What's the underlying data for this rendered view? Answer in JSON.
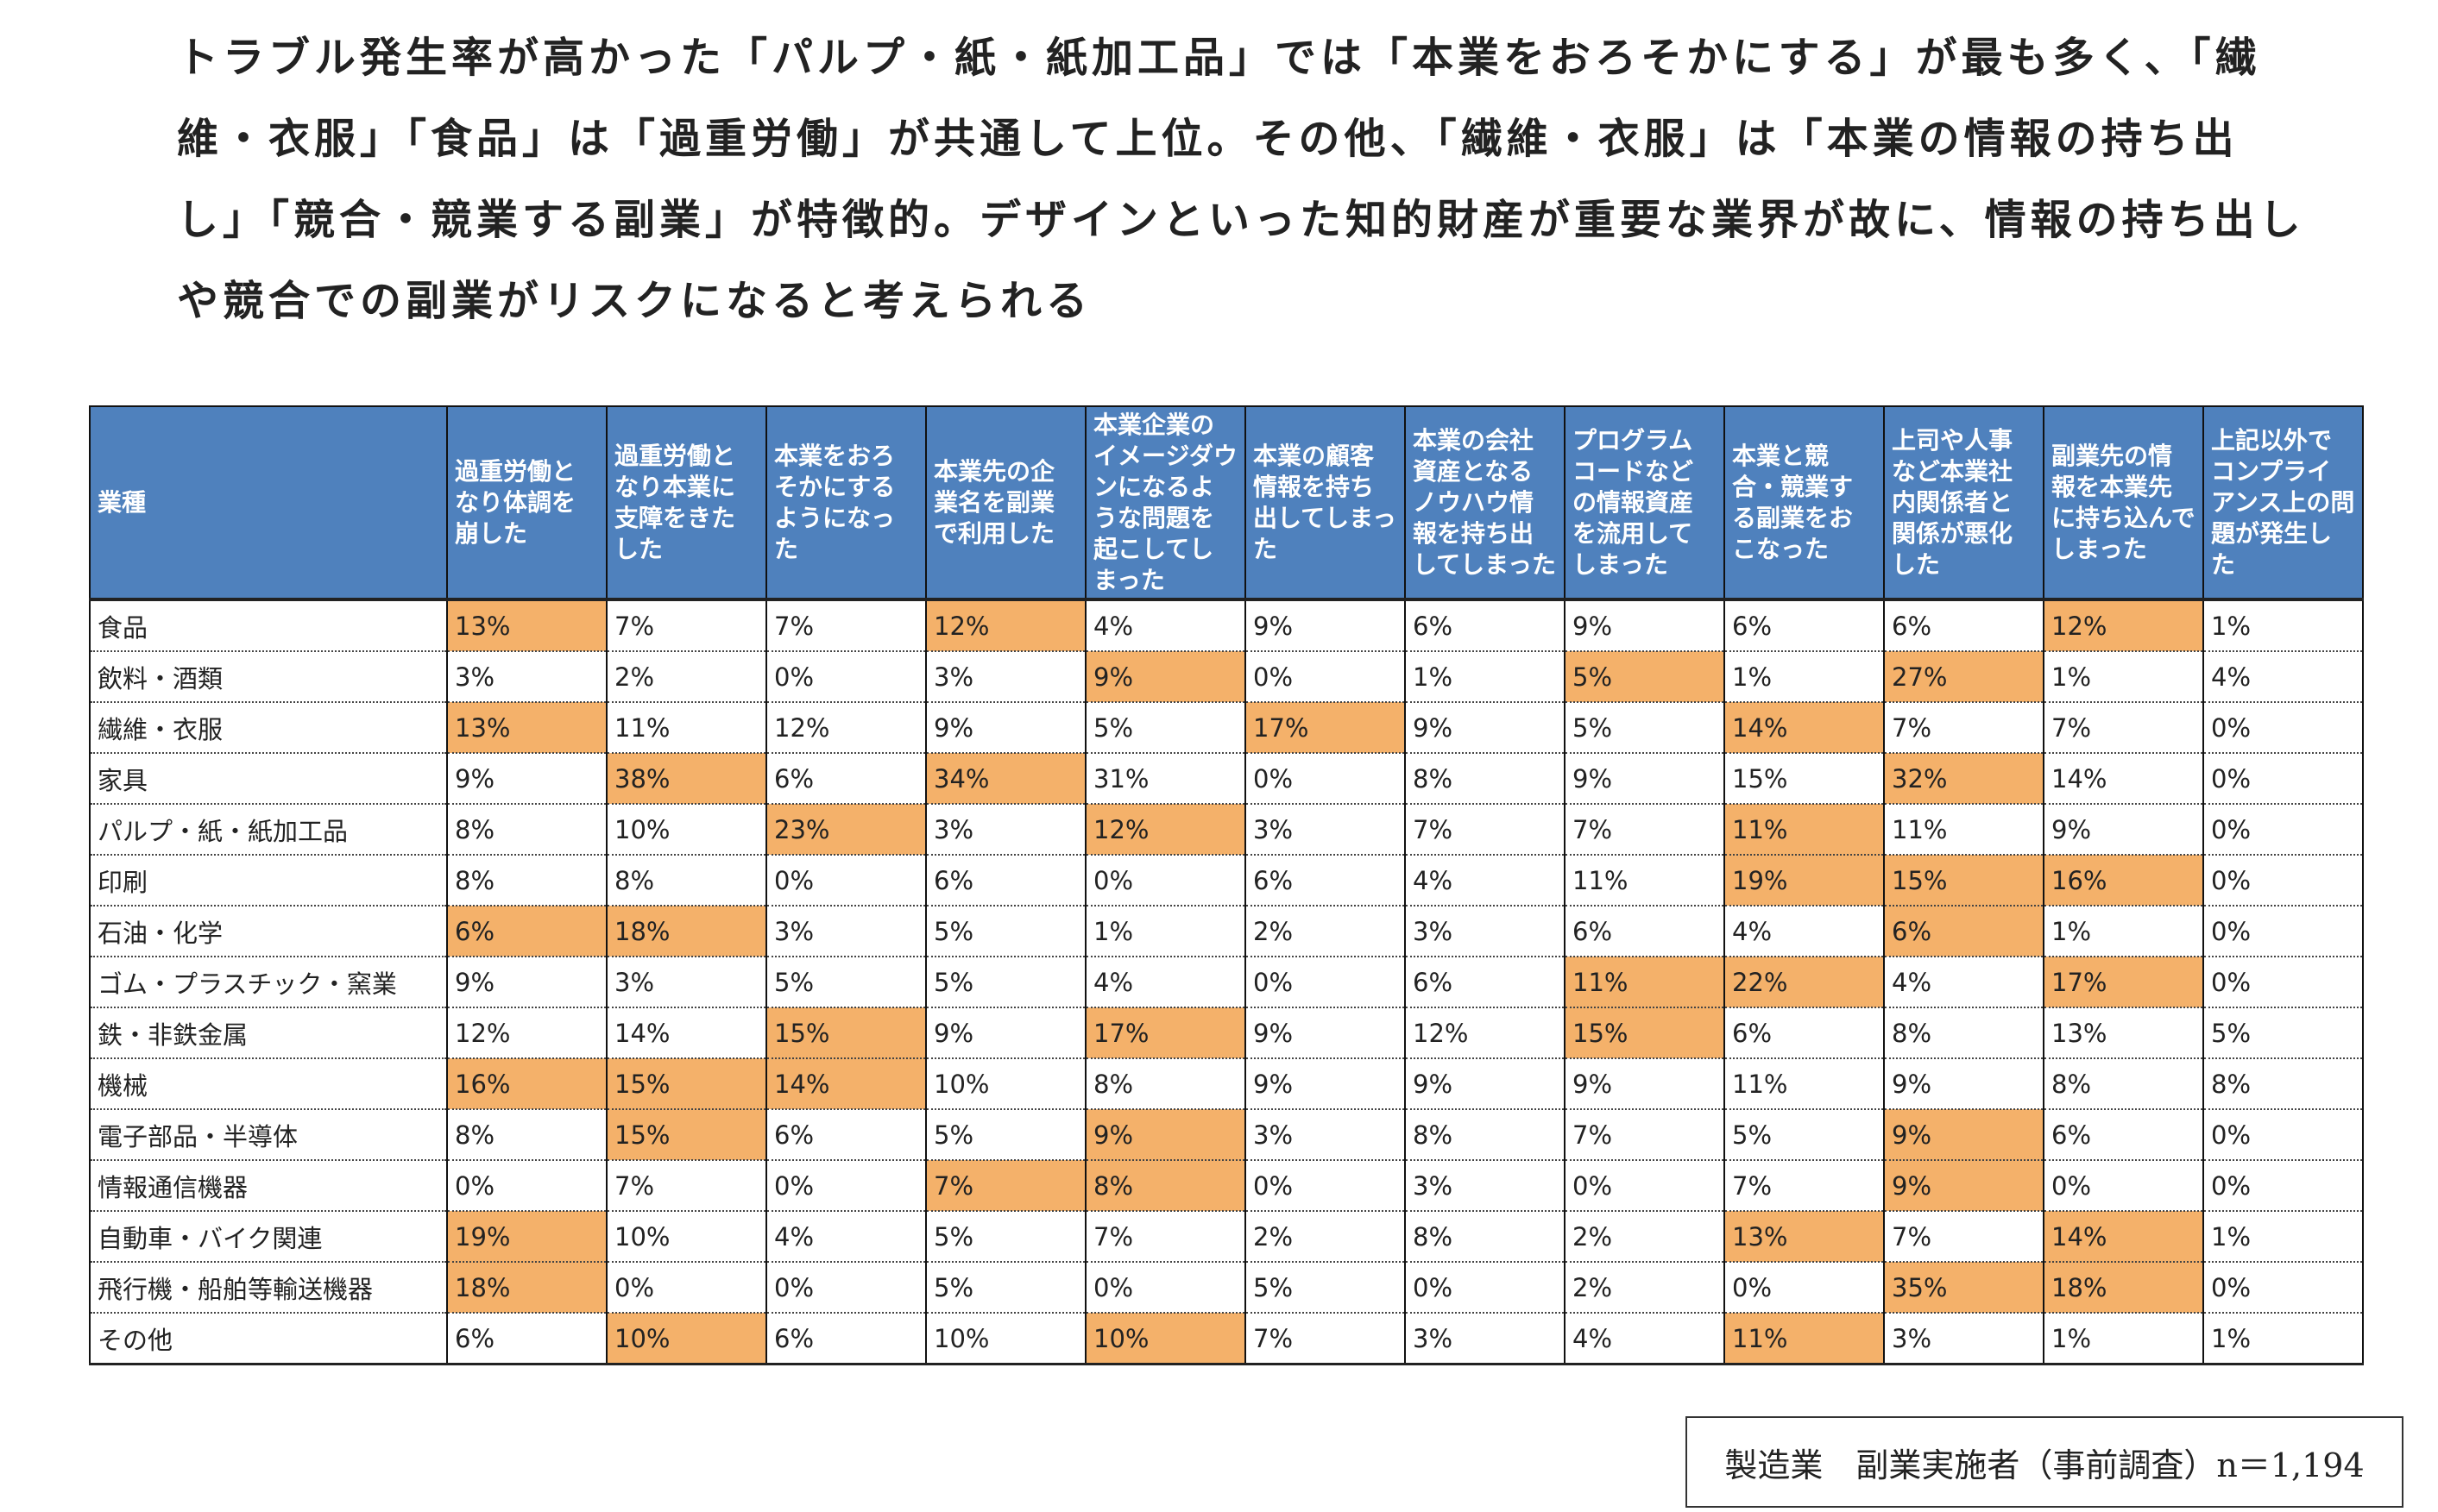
{
  "summary": {
    "lines": [
      "トラブル発生率が高かった「パルプ・紙・紙加工品」では「本業をおろそかにする」が最も多く、「繊",
      "維・衣服」「食品」は「過重労働」が共通して上位。その他、「繊維・衣服」は「本業の情報の持ち出",
      "し」「競合・競業する副業」が特徴的。デザインといった知的財産が重要な業界が故に、情報の持ち出し",
      "や競合での副業がリスクになると考えられる"
    ]
  },
  "colors": {
    "header_bg": "#4f81bd",
    "highlight": "#f4b16a"
  },
  "table": {
    "headers": [
      "業種",
      "過重労働となり体調を崩した",
      "過重労働となり本業に支障をきたした",
      "本業をおろそかにするようになった",
      "本業先の企業名を副業で利用した",
      "本業企業のイメージダウンになるような問題を起こしてしまった",
      "本業の顧客情報を持ち出してしまった",
      "本業の会社資産となるノウハウ情報を持ち出してしまった",
      "プログラムコードなどの情報資産を流用してしまった",
      "本業と競合・競業する副業をおこなった",
      "上司や人事など本業社内関係者と関係が悪化した",
      "副業先の情報を本業先に持ち込んでしまった",
      "上記以外でコンプライアンス上の問題が発生した"
    ],
    "rows": [
      {
        "industry": "食品",
        "values": [
          "13%",
          "7%",
          "7%",
          "12%",
          "4%",
          "9%",
          "6%",
          "9%",
          "6%",
          "6%",
          "12%",
          "1%"
        ],
        "highlight": [
          0,
          3,
          10
        ]
      },
      {
        "industry": "飲料・酒類",
        "values": [
          "3%",
          "2%",
          "0%",
          "3%",
          "9%",
          "0%",
          "1%",
          "5%",
          "1%",
          "27%",
          "1%",
          "4%"
        ],
        "highlight": [
          4,
          7,
          9
        ]
      },
      {
        "industry": "繊維・衣服",
        "values": [
          "13%",
          "11%",
          "12%",
          "9%",
          "5%",
          "17%",
          "9%",
          "5%",
          "14%",
          "7%",
          "7%",
          "0%"
        ],
        "highlight": [
          0,
          5,
          8
        ]
      },
      {
        "industry": "家具",
        "values": [
          "9%",
          "38%",
          "6%",
          "34%",
          "31%",
          "0%",
          "8%",
          "9%",
          "15%",
          "32%",
          "14%",
          "0%"
        ],
        "highlight": [
          1,
          3,
          9
        ]
      },
      {
        "industry": "パルプ・紙・紙加工品",
        "values": [
          "8%",
          "10%",
          "23%",
          "3%",
          "12%",
          "3%",
          "7%",
          "7%",
          "11%",
          "11%",
          "9%",
          "0%"
        ],
        "highlight": [
          2,
          4,
          8
        ]
      },
      {
        "industry": "印刷",
        "values": [
          "8%",
          "8%",
          "0%",
          "6%",
          "0%",
          "6%",
          "4%",
          "11%",
          "19%",
          "15%",
          "16%",
          "0%"
        ],
        "highlight": [
          8,
          9,
          10
        ]
      },
      {
        "industry": "石油・化学",
        "values": [
          "6%",
          "18%",
          "3%",
          "5%",
          "1%",
          "2%",
          "3%",
          "6%",
          "4%",
          "6%",
          "1%",
          "0%"
        ],
        "highlight": [
          0,
          1,
          9
        ]
      },
      {
        "industry": "ゴム・プラスチック・窯業",
        "values": [
          "9%",
          "3%",
          "5%",
          "5%",
          "4%",
          "0%",
          "6%",
          "11%",
          "22%",
          "4%",
          "17%",
          "0%"
        ],
        "highlight": [
          7,
          8,
          10
        ]
      },
      {
        "industry": "鉄・非鉄金属",
        "values": [
          "12%",
          "14%",
          "15%",
          "9%",
          "17%",
          "9%",
          "12%",
          "15%",
          "6%",
          "8%",
          "13%",
          "5%"
        ],
        "highlight": [
          2,
          4,
          7
        ]
      },
      {
        "industry": "機械",
        "values": [
          "16%",
          "15%",
          "14%",
          "10%",
          "8%",
          "9%",
          "9%",
          "9%",
          "11%",
          "9%",
          "8%",
          "8%"
        ],
        "highlight": [
          0,
          1,
          2
        ]
      },
      {
        "industry": "電子部品・半導体",
        "values": [
          "8%",
          "15%",
          "6%",
          "5%",
          "9%",
          "3%",
          "8%",
          "7%",
          "5%",
          "9%",
          "6%",
          "0%"
        ],
        "highlight": [
          1,
          4,
          9
        ]
      },
      {
        "industry": "情報通信機器",
        "values": [
          "0%",
          "7%",
          "0%",
          "7%",
          "8%",
          "0%",
          "3%",
          "0%",
          "7%",
          "9%",
          "0%",
          "0%"
        ],
        "highlight": [
          3,
          4,
          9
        ]
      },
      {
        "industry": "自動車・バイク関連",
        "values": [
          "19%",
          "10%",
          "4%",
          "5%",
          "7%",
          "2%",
          "8%",
          "2%",
          "13%",
          "7%",
          "14%",
          "1%"
        ],
        "highlight": [
          0,
          8,
          10
        ]
      },
      {
        "industry": "飛行機・船舶等輸送機器",
        "values": [
          "18%",
          "0%",
          "0%",
          "5%",
          "0%",
          "5%",
          "0%",
          "2%",
          "0%",
          "35%",
          "18%",
          "0%"
        ],
        "highlight": [
          0,
          9,
          10
        ]
      },
      {
        "industry": "その他",
        "values": [
          "6%",
          "10%",
          "6%",
          "10%",
          "10%",
          "7%",
          "3%",
          "4%",
          "11%",
          "3%",
          "1%",
          "1%"
        ],
        "highlight": [
          1,
          4,
          8
        ]
      }
    ]
  },
  "footnote": "製造業　副業実施者（事前調査）n＝1,194"
}
